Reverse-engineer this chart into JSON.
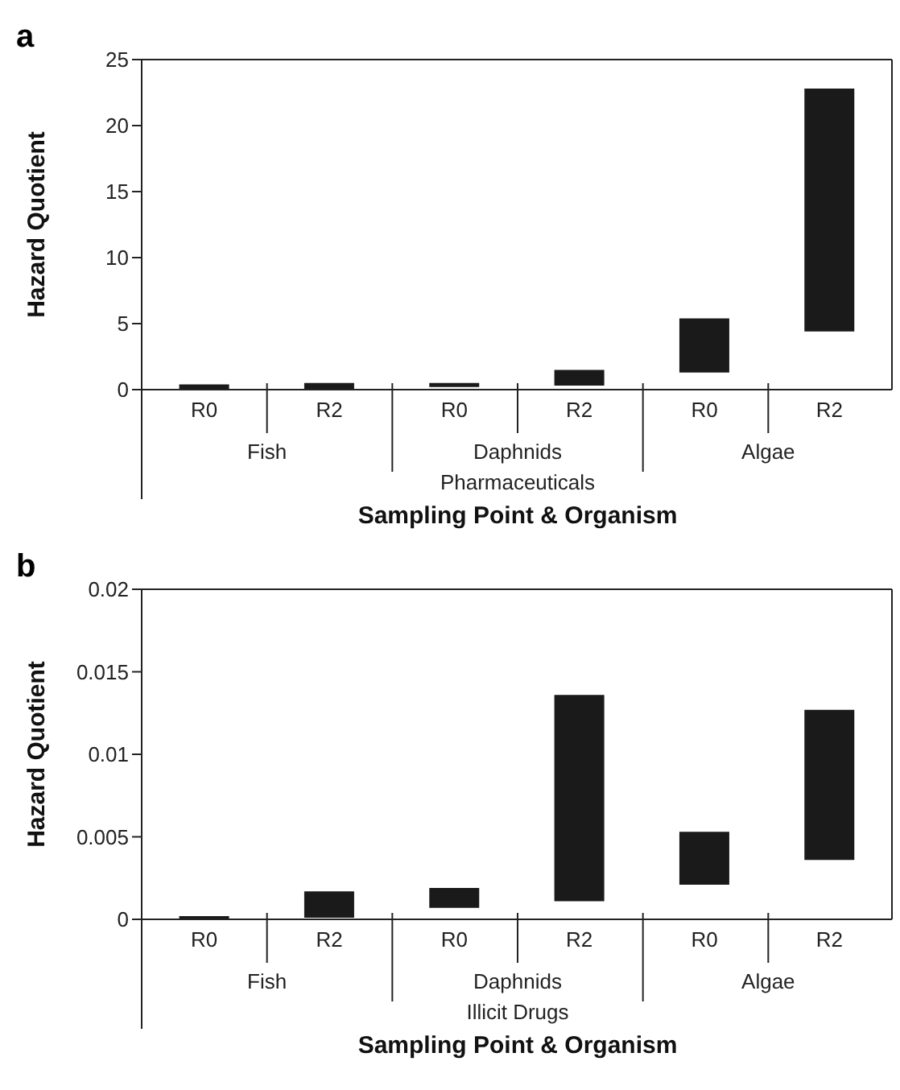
{
  "chart_data": [
    {
      "type": "bar",
      "title": "a",
      "ylabel": "Hazard Quotient",
      "xlabel": "Sampling Point & Organism",
      "categories": [
        "R0",
        "R2",
        "R0",
        "R2",
        "R0",
        "R2"
      ],
      "annotations": [
        "Fish",
        "Daphnids",
        "Algae",
        "Pharmaceuticals"
      ],
      "series": [
        {
          "color": "#1a1a1a",
          "values": [
            0.4,
            0.5,
            0.3,
            1.2,
            4.1,
            18.4
          ],
          "base": [
            0,
            0,
            0.2,
            0.3,
            1.3,
            4.4
          ]
        }
      ],
      "ylim": [
        0,
        25
      ],
      "yticks": [
        0,
        5,
        10,
        15,
        20,
        25
      ],
      "grid": false,
      "legend": false
    },
    {
      "type": "bar",
      "title": "b",
      "ylabel": "Hazard Quotient",
      "xlabel": "Sampling Point & Organism",
      "categories": [
        "R0",
        "R2",
        "R0",
        "R2",
        "R0",
        "R2"
      ],
      "annotations": [
        "Fish",
        "Daphnids",
        "Algae",
        "Illicit Drugs"
      ],
      "series": [
        {
          "color": "#1a1a1a",
          "values": [
            0.0002,
            0.0016,
            0.0012,
            0.0125,
            0.0032,
            0.0091
          ],
          "base": [
            0,
            0.0001,
            0.0007,
            0.0011,
            0.0021,
            0.0036
          ]
        }
      ],
      "ylim": [
        0,
        0.02
      ],
      "yticks": [
        0,
        0.005,
        0.01,
        0.015,
        0.02
      ],
      "grid": false,
      "legend": false
    }
  ]
}
